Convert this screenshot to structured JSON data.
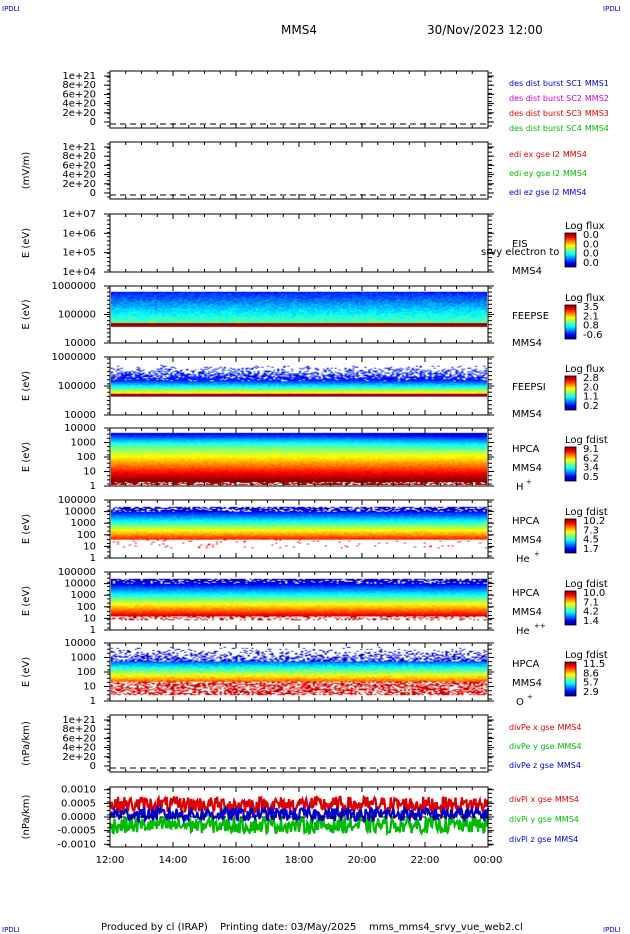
{
  "header": {
    "corner_tl": "IPDLI",
    "corner_tr": "IPDLI",
    "corner_bl": "IPDLI",
    "corner_br": "IPDLI",
    "mission": "MMS4",
    "datetime": "30/Nov/2023 12:00"
  },
  "footer": {
    "producer": "Produced by cl (IRAP)",
    "print_date": "Printing date: 03/May/2025",
    "script": "mms_mms4_srvy_vue_web2.cl"
  },
  "colors": {
    "red": "#dd0000",
    "magenta": "#cc00cc",
    "green": "#00bb00",
    "blue": "#0000cc"
  },
  "chart_data": {
    "type": "multi-panel time series / spectrogram",
    "x": {
      "range": [
        "12:00",
        "00:00"
      ],
      "tick_labels": [
        "12:00",
        "14:00",
        "16:00",
        "18:00",
        "20:00",
        "22:00",
        "00:00"
      ]
    },
    "panels": [
      {
        "id": "des-dist",
        "type": "line",
        "ylabel": "",
        "ytick_labels": [
          "1e+21",
          "8e+20",
          "6e+20",
          "4e+20",
          "2e+20",
          "0"
        ],
        "legend": [
          {
            "text": "des dist burst SC1",
            "sc": "MMS1",
            "color": "#0000cc"
          },
          {
            "text": "des dist burst SC2",
            "sc": "MMS2",
            "color": "#cc00cc"
          },
          {
            "text": "des dist burst SC3",
            "sc": "MMS3",
            "color": "#dd0000"
          },
          {
            "text": "des dist burst SC4",
            "sc": "MMS4",
            "color": "#00bb00"
          }
        ]
      },
      {
        "id": "edi",
        "type": "line",
        "ylabel": "(mV/m)",
        "ytick_labels": [
          "1e+21",
          "8e+20",
          "6e+20",
          "4e+20",
          "2e+20",
          "0"
        ],
        "legend": [
          {
            "text": "edi ex gse l2",
            "sc": "MMS4",
            "color": "#dd0000"
          },
          {
            "text": "edi ey gse l2",
            "sc": "MMS4",
            "color": "#00bb00"
          },
          {
            "text": "edi ez gse l2",
            "sc": "MMS4",
            "color": "#0000cc"
          }
        ]
      },
      {
        "id": "eis",
        "type": "heatmap",
        "ylabel": "E (eV)",
        "ytick_labels": [
          "1e+07",
          "1e+06",
          "1e+05",
          "1e+04"
        ],
        "instrument": "EIS",
        "overlay": "srvy electron to",
        "sc": "MMS4",
        "cbar_title": "Log flux",
        "cbar_ticks": [
          "0.0",
          "0.0",
          "0.0",
          "0.0"
        ]
      },
      {
        "id": "feeps-e",
        "type": "heatmap",
        "ylabel": "E (eV)",
        "ytick_labels": [
          "1000000",
          "100000",
          "10000"
        ],
        "instrument": "FEEPSE",
        "sc": "MMS4",
        "cbar_title": "Log flux",
        "cbar_ticks": [
          "3.5",
          "2.1",
          "0.8",
          "-0.6"
        ]
      },
      {
        "id": "feeps-i",
        "type": "heatmap",
        "ylabel": "E (eV)",
        "ytick_labels": [
          "1000000",
          "100000",
          "10000"
        ],
        "instrument": "FEEPSI",
        "sc": "MMS4",
        "cbar_title": "Log flux",
        "cbar_ticks": [
          "2.8",
          "2.0",
          "1.1",
          "0.2"
        ]
      },
      {
        "id": "hpca-h",
        "type": "heatmap",
        "ylabel": "E (eV)",
        "ytick_labels": [
          "10000",
          "1000",
          "100",
          "10",
          "1"
        ],
        "instrument": "HPCA",
        "sc": "MMS4",
        "species": "H",
        "charge": "+",
        "cbar_title": "Log fdist",
        "cbar_ticks": [
          "9.1",
          "6.2",
          "3.4",
          "0.5"
        ]
      },
      {
        "id": "hpca-he1",
        "type": "heatmap",
        "ylabel": "E (eV)",
        "ytick_labels": [
          "100000",
          "10000",
          "1000",
          "100",
          "10",
          "1"
        ],
        "instrument": "HPCA",
        "sc": "MMS4",
        "species": "He",
        "charge": "+",
        "cbar_title": "Log fdist",
        "cbar_ticks": [
          "10.2",
          "7.3",
          "4.5",
          "1.7"
        ]
      },
      {
        "id": "hpca-he2",
        "type": "heatmap",
        "ylabel": "E (eV)",
        "ytick_labels": [
          "100000",
          "10000",
          "1000",
          "100",
          "10",
          "1"
        ],
        "instrument": "HPCA",
        "sc": "MMS4",
        "species": "He",
        "charge": "++",
        "cbar_title": "Log fdist",
        "cbar_ticks": [
          "10.0",
          "7.1",
          "4.2",
          "1.4"
        ]
      },
      {
        "id": "hpca-o",
        "type": "heatmap",
        "ylabel": "E (eV)",
        "ytick_labels": [
          "10000",
          "1000",
          "100",
          "10",
          "1"
        ],
        "instrument": "HPCA",
        "sc": "MMS4",
        "species": "O",
        "charge": "+",
        "cbar_title": "Log fdist",
        "cbar_ticks": [
          "11.5",
          "8.6",
          "5.7",
          "2.9"
        ]
      },
      {
        "id": "divpe",
        "type": "line",
        "ylabel": "(nPa/km)",
        "ytick_labels": [
          "1e+21",
          "8e+20",
          "6e+20",
          "4e+20",
          "2e+20",
          "0"
        ],
        "legend": [
          {
            "text": "divPe x gse",
            "sc": "MMS4",
            "color": "#dd0000"
          },
          {
            "text": "divPe y gse",
            "sc": "MMS4",
            "color": "#00bb00"
          },
          {
            "text": "divPe z gse",
            "sc": "MMS4",
            "color": "#0000cc"
          }
        ]
      },
      {
        "id": "divpi",
        "type": "line",
        "ylabel": "(nPa/km)",
        "ytick_labels": [
          "0.0010",
          "0.0005",
          "0.0000",
          "-0.0005",
          "-0.0010"
        ],
        "ylim": [
          -0.0011,
          0.0011
        ],
        "legend": [
          {
            "text": "divPi x gse",
            "sc": "MMS4",
            "color": "#dd0000"
          },
          {
            "text": "divPi y gse",
            "sc": "MMS4",
            "color": "#00bb00"
          },
          {
            "text": "divPi z gse",
            "sc": "MMS4",
            "color": "#0000cc"
          }
        ],
        "series": [
          {
            "color": "#dd0000",
            "mean": 0.00045,
            "spread": 0.0003
          },
          {
            "color": "#00bb00",
            "mean": -0.0003,
            "spread": 0.0003
          },
          {
            "color": "#0000cc",
            "mean": 0.0001,
            "spread": 0.00025
          }
        ]
      }
    ]
  }
}
